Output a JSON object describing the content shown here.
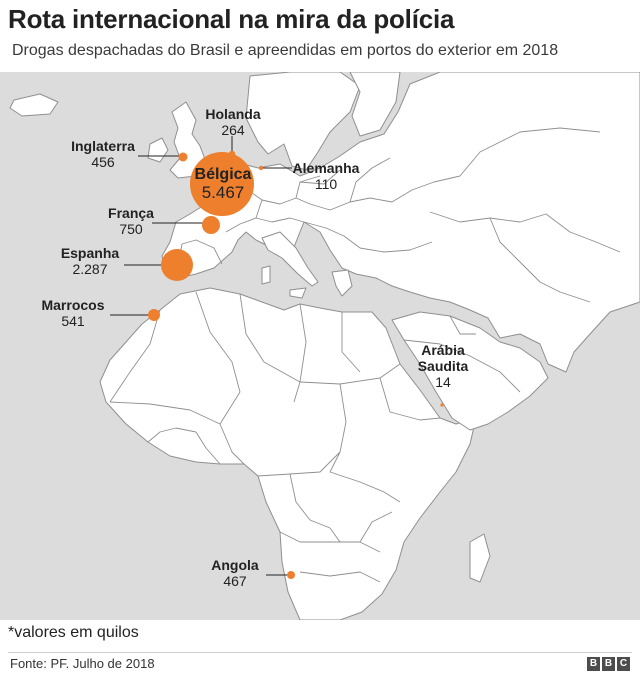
{
  "header": {
    "title": "Rota internacional na mira da polícia",
    "subtitle": "Drogas despachadas do Brasil e apreendidas em portos do exterior em 2018"
  },
  "colors": {
    "sea": "#dcdcdc",
    "land": "#ffffff",
    "border": "#8f8f8f",
    "bubble": "#ee7f2d"
  },
  "seizures": [
    {
      "id": "holanda",
      "name": "Holanda",
      "value_label": "264",
      "kg": 264
    },
    {
      "id": "inglaterra",
      "name": "Inglaterra",
      "value_label": "456",
      "kg": 456
    },
    {
      "id": "alemanha",
      "name": "Alemanha",
      "value_label": "110",
      "kg": 110
    },
    {
      "id": "belgica",
      "name": "Bélgica",
      "value_label": "5.467",
      "kg": 5467
    },
    {
      "id": "franca",
      "name": "França",
      "value_label": "750",
      "kg": 750
    },
    {
      "id": "espanha",
      "name": "Espanha",
      "value_label": "2.287",
      "kg": 2287
    },
    {
      "id": "marrocos",
      "name": "Marrocos",
      "value_label": "541",
      "kg": 541
    },
    {
      "id": "arabia",
      "name": "Arábia Saudita",
      "value_label": "14",
      "kg": 14
    },
    {
      "id": "angola",
      "name": "Angola",
      "value_label": "467",
      "kg": 467
    }
  ],
  "note": "*valores em quilos",
  "footer": {
    "source": "Fonte: PF. Julho de 2018",
    "logo_letters": [
      "B",
      "B",
      "C"
    ]
  }
}
